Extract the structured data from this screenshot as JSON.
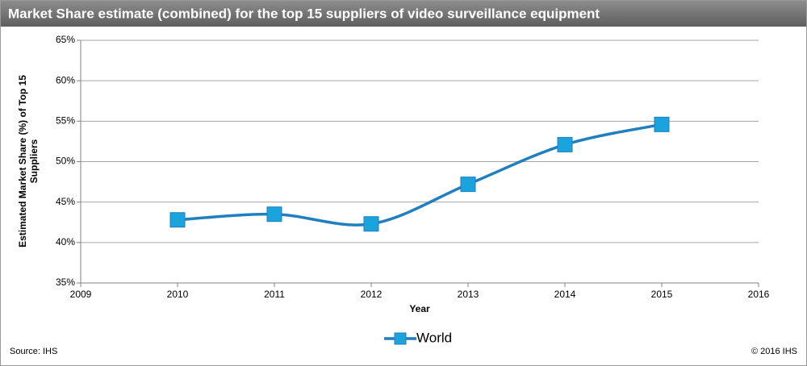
{
  "chart_data": {
    "type": "line",
    "title": "Market Share estimate (combined) for the top 15 suppliers of video surveillance equipment",
    "xlabel": "Year",
    "ylabel": [
      "Estimated Market Share (%) of Top 15",
      "Suppliers"
    ],
    "x": [
      2010,
      2011,
      2012,
      2013,
      2014,
      2015
    ],
    "series": [
      {
        "name": "World",
        "color": "#1f7fbf",
        "marker_color": "#1aa3dc",
        "values": [
          42.8,
          43.5,
          42.3,
          47.2,
          52.1,
          54.6
        ]
      }
    ],
    "xlim": [
      2009,
      2016
    ],
    "xticks": [
      2009,
      2010,
      2011,
      2012,
      2013,
      2014,
      2015,
      2016
    ],
    "ylim": [
      35,
      65
    ],
    "yticks": [
      {
        "value": 35,
        "label": "35%"
      },
      {
        "value": 40,
        "label": "40%"
      },
      {
        "value": 45,
        "label": "45%"
      },
      {
        "value": 50,
        "label": "50%"
      },
      {
        "value": 55,
        "label": "55%"
      },
      {
        "value": 60,
        "label": "60%"
      },
      {
        "value": 65,
        "label": "65%"
      }
    ],
    "grid": true,
    "legend": "bottom",
    "source": "Source: IHS",
    "copyright": "© 2016 IHS"
  }
}
